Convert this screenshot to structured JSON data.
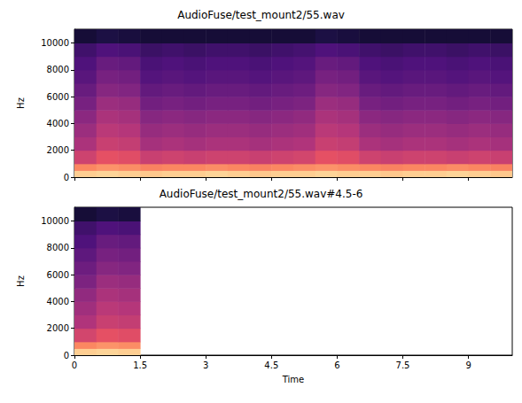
{
  "chart_data": [
    {
      "type": "heatmap",
      "title": "AudioFuse/test_mount2/55.wav",
      "ylabel": "Hz",
      "xlim": [
        0,
        10
      ],
      "xticks": [
        0,
        1.5,
        3,
        4.5,
        6,
        7.5,
        9
      ],
      "ylim": [
        0,
        11025
      ],
      "yticks": [
        0,
        2000,
        4000,
        6000,
        8000,
        10000
      ],
      "tick_labels": "y",
      "time_edges": [
        0,
        0.5,
        1,
        1.5,
        2,
        2.5,
        3,
        3.5,
        4,
        4.5,
        5,
        5.5,
        6,
        6.5,
        7,
        7.5,
        8,
        8.5,
        9,
        9.5,
        10
      ],
      "freq_edges": [
        0,
        500,
        1000,
        2000,
        3000,
        4000,
        5000,
        6000,
        7000,
        8000,
        9000,
        10000,
        11025
      ],
      "cells": [
        [
          -8,
          -7,
          -8,
          -9,
          -8,
          -8,
          -7,
          -8,
          -9,
          -8,
          -8,
          -7,
          -8,
          -8,
          -9,
          -8,
          -8,
          -7,
          -8,
          -9
        ],
        [
          -20,
          -18,
          -19,
          -21,
          -20,
          -20,
          -19,
          -20,
          -21,
          -20,
          -19,
          -18,
          -19,
          -20,
          -21,
          -20,
          -20,
          -19,
          -20,
          -21
        ],
        [
          -35,
          -30,
          -31,
          -36,
          -35,
          -36,
          -35,
          -35,
          -36,
          -35,
          -34,
          -30,
          -31,
          -35,
          -36,
          -35,
          -35,
          -36,
          -35,
          -36
        ],
        [
          -42,
          -36,
          -37,
          -43,
          -42,
          -43,
          -42,
          -42,
          -43,
          -42,
          -41,
          -36,
          -37,
          -42,
          -43,
          -42,
          -42,
          -43,
          -42,
          -43
        ],
        [
          -45,
          -39,
          -40,
          -46,
          -45,
          -46,
          -45,
          -45,
          -46,
          -45,
          -44,
          -39,
          -40,
          -45,
          -46,
          -45,
          -45,
          -46,
          -45,
          -46
        ],
        [
          -48,
          -42,
          -43,
          -49,
          -48,
          -49,
          -48,
          -48,
          -49,
          -48,
          -47,
          -42,
          -43,
          -48,
          -49,
          -48,
          -48,
          -49,
          -48,
          -49
        ],
        [
          -52,
          -45,
          -46,
          -53,
          -52,
          -53,
          -52,
          -52,
          -53,
          -52,
          -51,
          -45,
          -46,
          -52,
          -53,
          -52,
          -52,
          -53,
          -52,
          -53
        ],
        [
          -55,
          -49,
          -50,
          -56,
          -55,
          -56,
          -55,
          -55,
          -56,
          -55,
          -54,
          -49,
          -50,
          -55,
          -56,
          -55,
          -55,
          -56,
          -55,
          -56
        ],
        [
          -58,
          -52,
          -53,
          -59,
          -58,
          -59,
          -58,
          -58,
          -59,
          -58,
          -57,
          -52,
          -53,
          -58,
          -59,
          -58,
          -58,
          -59,
          -58,
          -59
        ],
        [
          -60,
          -55,
          -56,
          -61,
          -60,
          -61,
          -60,
          -60,
          -61,
          -60,
          -59,
          -55,
          -56,
          -60,
          -61,
          -60,
          -60,
          -61,
          -60,
          -61
        ],
        [
          -63,
          -60,
          -61,
          -64,
          -63,
          -64,
          -63,
          -63,
          -64,
          -63,
          -62,
          -60,
          -61,
          -63,
          -64,
          -63,
          -63,
          -64,
          -63,
          -64
        ],
        [
          -72,
          -70,
          -71,
          -72,
          -72,
          -72,
          -72,
          -72,
          -72,
          -72,
          -72,
          -70,
          -71,
          -72,
          -72,
          -72,
          -72,
          -72,
          -72,
          -72
        ]
      ],
      "color_range": [
        -80,
        0
      ]
    },
    {
      "type": "heatmap",
      "title": "AudioFuse/test_mount2/55.wav#4.5-6",
      "xlabel": "Time",
      "ylabel": "Hz",
      "xlim": [
        0,
        10
      ],
      "xticks": [
        0,
        1.5,
        3,
        4.5,
        6,
        7.5,
        9
      ],
      "ylim": [
        0,
        11025
      ],
      "yticks": [
        0,
        2000,
        4000,
        6000,
        8000,
        10000
      ],
      "time_edges": [
        0,
        0.5,
        1,
        1.5
      ],
      "freq_edges": [
        0,
        500,
        1000,
        2000,
        3000,
        4000,
        5000,
        6000,
        7000,
        8000,
        9000,
        10000,
        11025
      ],
      "cells": [
        [
          -8,
          -7,
          -8
        ],
        [
          -20,
          -18,
          -19
        ],
        [
          -34,
          -30,
          -31
        ],
        [
          -41,
          -36,
          -37
        ],
        [
          -44,
          -39,
          -40
        ],
        [
          -47,
          -42,
          -43
        ],
        [
          -51,
          -45,
          -46
        ],
        [
          -54,
          -49,
          -50
        ],
        [
          -57,
          -52,
          -53
        ],
        [
          -60,
          -55,
          -56
        ],
        [
          -63,
          -60,
          -61
        ],
        [
          -72,
          -70,
          -71
        ]
      ],
      "color_range": [
        -80,
        0
      ]
    }
  ]
}
